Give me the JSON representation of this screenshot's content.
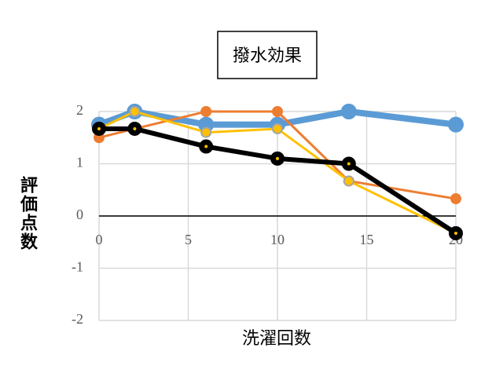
{
  "chart_data": {
    "type": "line",
    "title": "撥水効果",
    "x_label": "洗濯回数",
    "y_label": "評価点数",
    "x": [
      0,
      2,
      6,
      10,
      14,
      20
    ],
    "xlim": [
      0,
      20
    ],
    "xticks": [
      0,
      5,
      10,
      15,
      20
    ],
    "ylim": [
      -2,
      2
    ],
    "yticks": [
      -2,
      -1,
      0,
      1,
      2
    ],
    "grid": true,
    "series": [
      {
        "color": "#5b9bd5",
        "values": [
          1.75,
          2,
          1.75,
          1.75,
          2,
          1.75
        ]
      },
      {
        "color": "#ed7d31",
        "values": [
          1.5,
          1.67,
          2,
          2,
          0.67,
          0.33
        ]
      },
      {
        "color": "#ffc000",
        "values": [
          1.67,
          2,
          1.6,
          1.67,
          0.67,
          -0.33
        ]
      },
      {
        "color": "#000000",
        "values": [
          1.67,
          1.67,
          1.33,
          1.1,
          1,
          -0.33
        ]
      }
    ]
  }
}
